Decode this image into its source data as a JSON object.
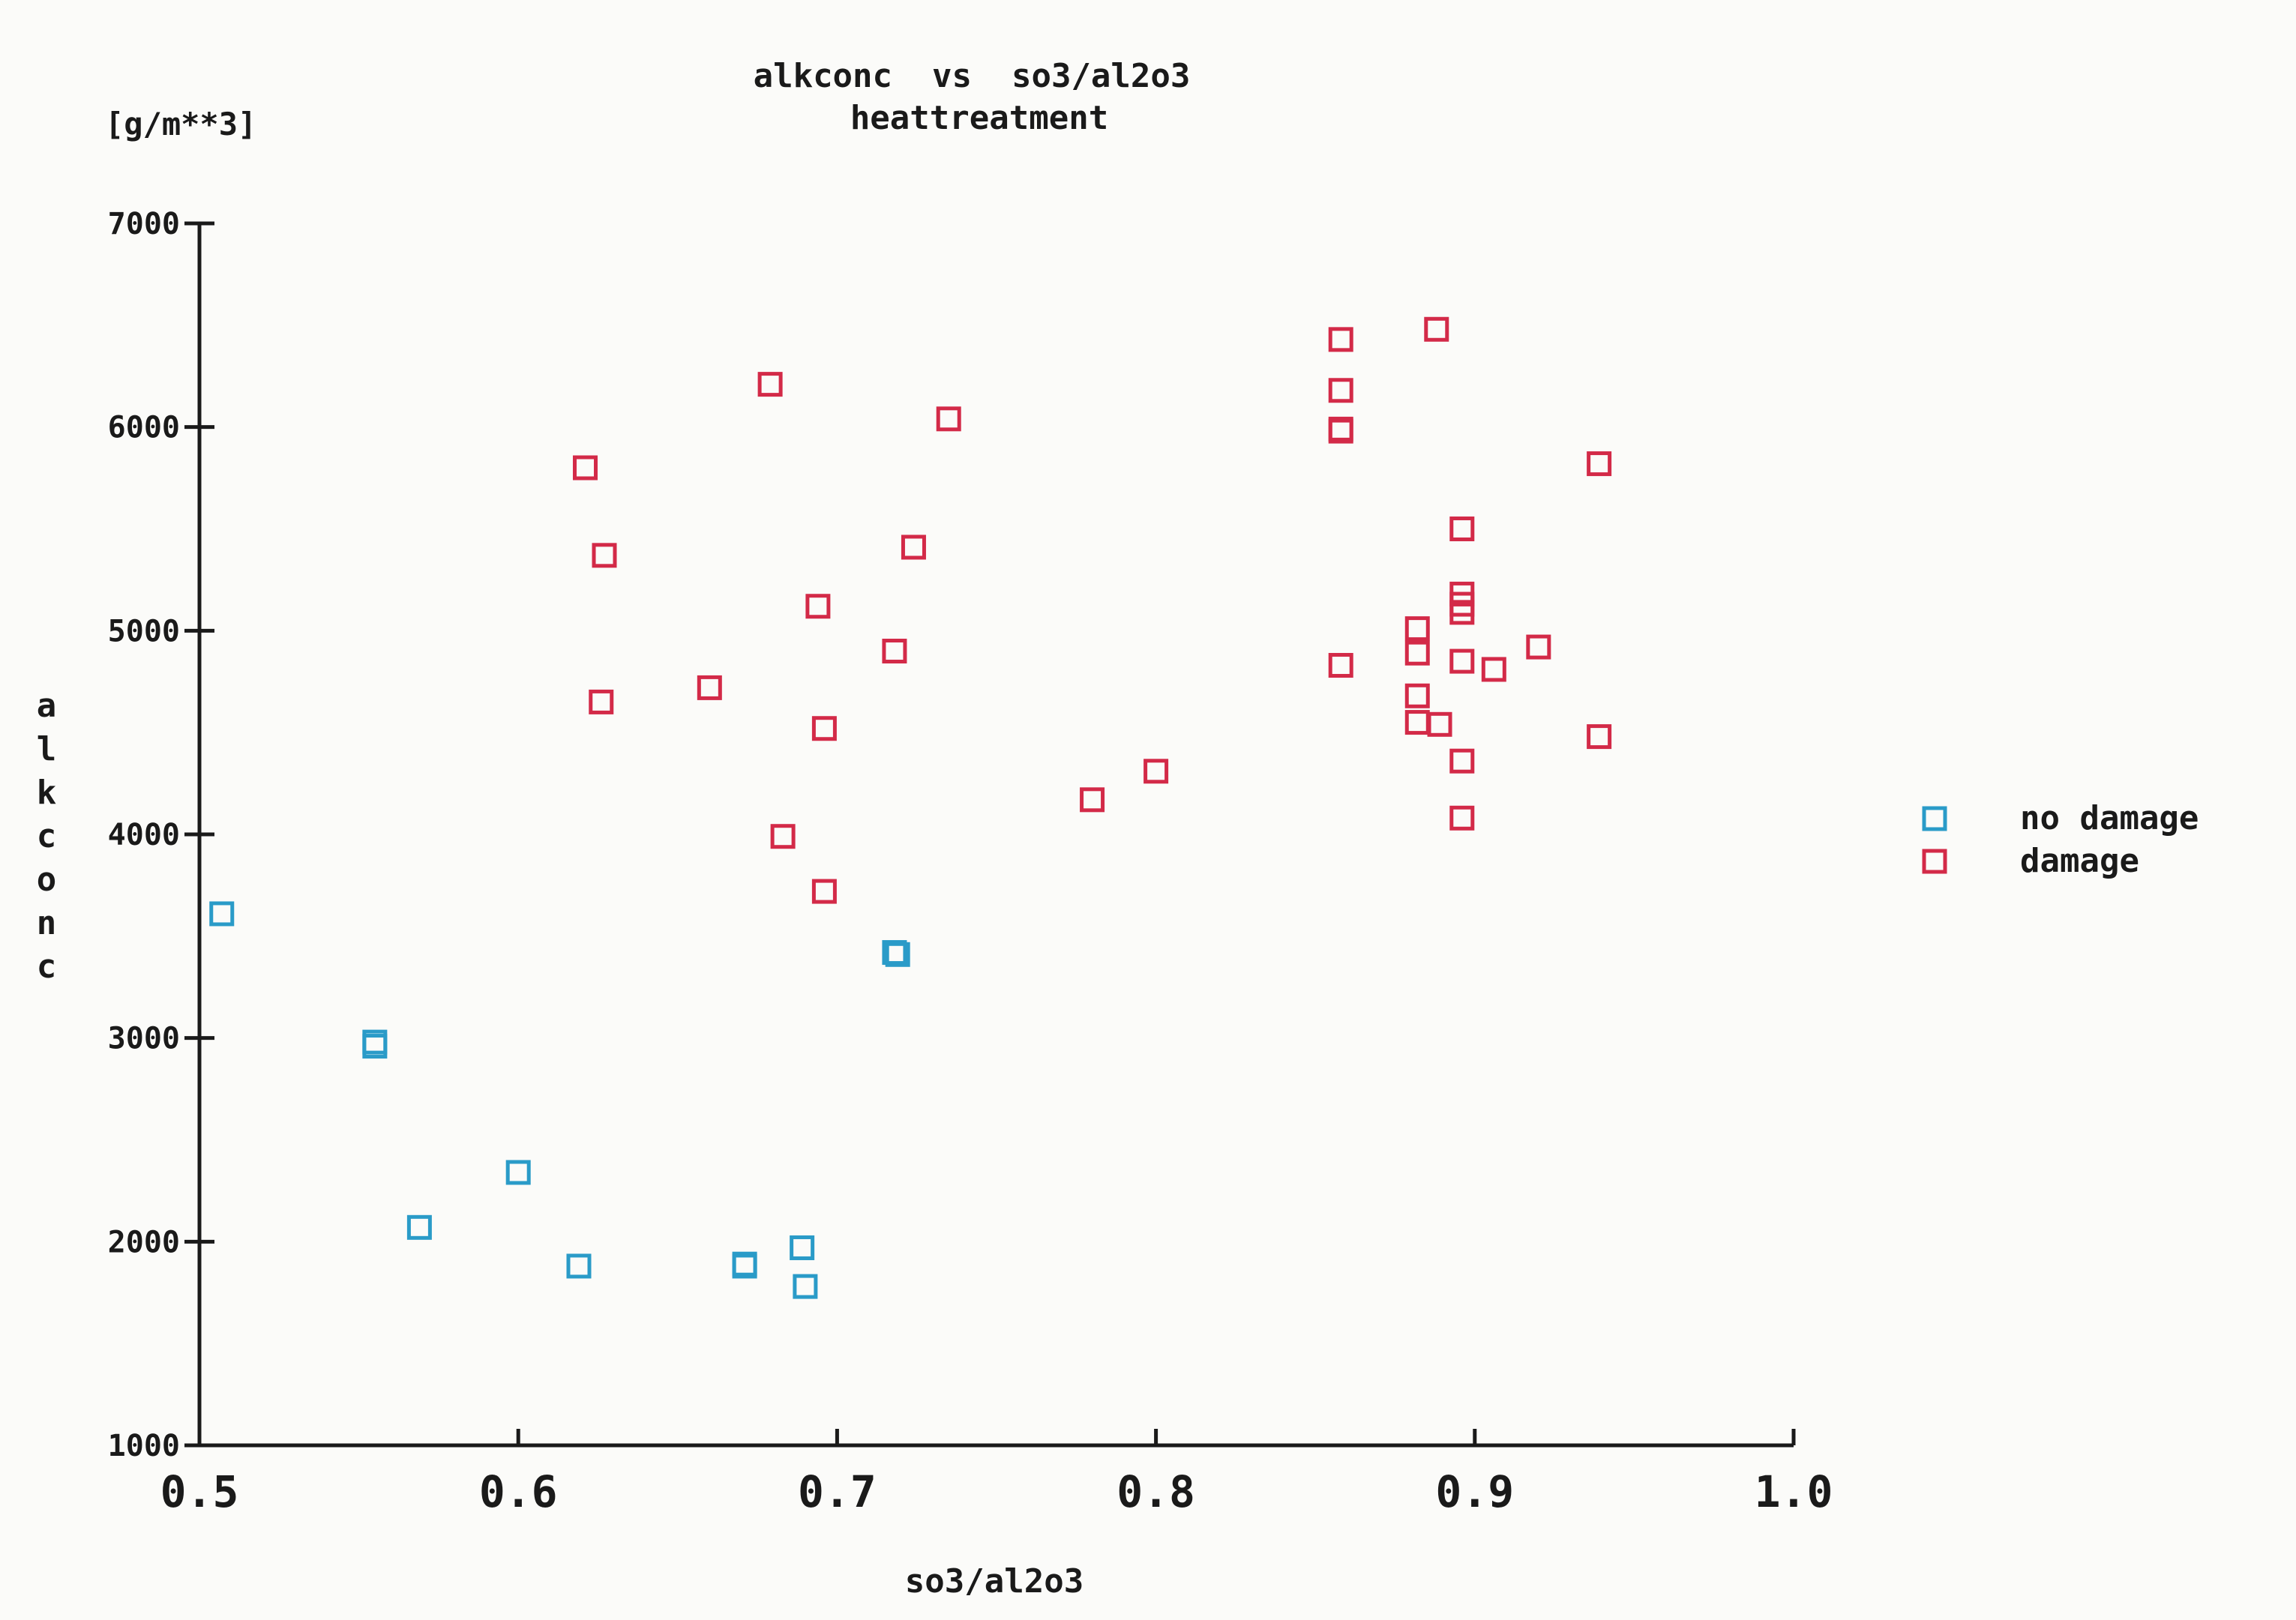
{
  "chart_data": {
    "type": "scatter",
    "title_line1": "alkconc  vs  so3/al2o3",
    "title_line2": "heattreatment",
    "ylabel": "alkconc",
    "yunit": "[g/m**3]",
    "xlabel": "so3/al2o3",
    "xlim": [
      0.5,
      1.0
    ],
    "ylim": [
      1000,
      7000
    ],
    "xticks": [
      0.5,
      0.6,
      0.7,
      0.8,
      0.9,
      1.0
    ],
    "xtick_labels": [
      "0.5",
      "0.6",
      "0.7",
      "0.8",
      "0.9",
      "1.0"
    ],
    "yticks": [
      1000,
      2000,
      3000,
      4000,
      5000,
      6000,
      7000
    ],
    "ytick_labels": [
      "1000",
      "2000",
      "3000",
      "4000",
      "5000",
      "6000",
      "7000"
    ],
    "grid": false,
    "legend_position": "right",
    "series": [
      {
        "name": "no damage",
        "color": "#2a9bc8",
        "marker": "square-outline",
        "points": [
          [
            0.507,
            3610
          ],
          [
            0.555,
            2980
          ],
          [
            0.555,
            2960
          ],
          [
            0.569,
            2070
          ],
          [
            0.6,
            2340
          ],
          [
            0.619,
            1880
          ],
          [
            0.671,
            1880
          ],
          [
            0.671,
            1890
          ],
          [
            0.689,
            1970
          ],
          [
            0.69,
            1780
          ],
          [
            0.718,
            3420
          ],
          [
            0.719,
            3410
          ]
        ]
      },
      {
        "name": "damage",
        "color": "#d32a48",
        "marker": "square-outline",
        "points": [
          [
            0.621,
            5800
          ],
          [
            0.627,
            5370
          ],
          [
            0.626,
            4650
          ],
          [
            0.66,
            4720
          ],
          [
            0.679,
            6210
          ],
          [
            0.683,
            3990
          ],
          [
            0.694,
            5120
          ],
          [
            0.696,
            4520
          ],
          [
            0.696,
            3720
          ],
          [
            0.718,
            4900
          ],
          [
            0.724,
            5410
          ],
          [
            0.735,
            6040
          ],
          [
            0.78,
            4170
          ],
          [
            0.8,
            4310
          ],
          [
            0.858,
            6430
          ],
          [
            0.858,
            6180
          ],
          [
            0.858,
            5990
          ],
          [
            0.858,
            5980
          ],
          [
            0.858,
            4830
          ],
          [
            0.882,
            5010
          ],
          [
            0.882,
            4890
          ],
          [
            0.882,
            4680
          ],
          [
            0.882,
            4550
          ],
          [
            0.888,
            6480
          ],
          [
            0.889,
            4540
          ],
          [
            0.896,
            5500
          ],
          [
            0.896,
            5180
          ],
          [
            0.896,
            5130
          ],
          [
            0.896,
            5090
          ],
          [
            0.896,
            4850
          ],
          [
            0.896,
            4360
          ],
          [
            0.896,
            4080
          ],
          [
            0.906,
            4810
          ],
          [
            0.92,
            4920
          ],
          [
            0.939,
            5820
          ],
          [
            0.939,
            4480
          ]
        ]
      }
    ]
  }
}
